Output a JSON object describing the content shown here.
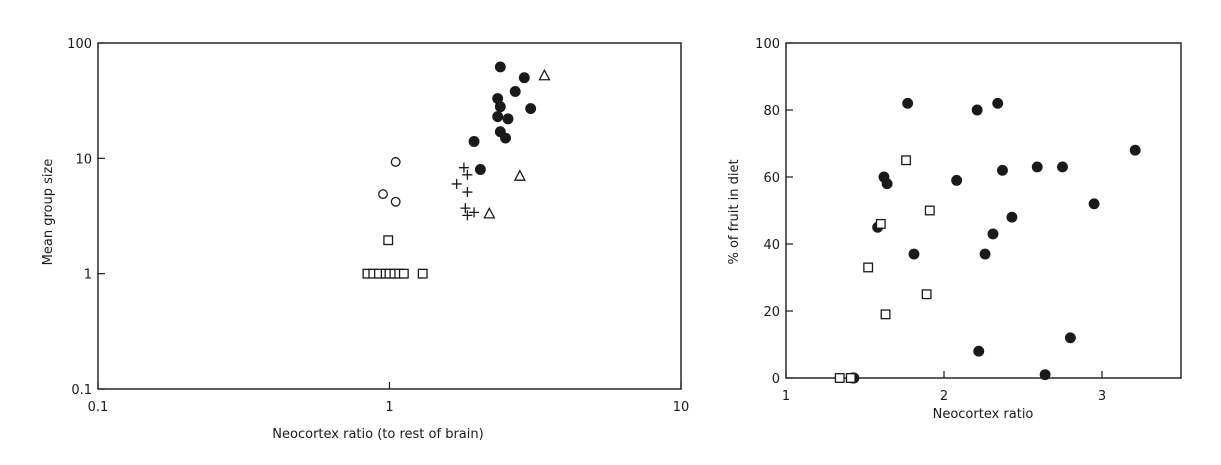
{
  "chart_data": [
    {
      "type": "scatter",
      "xlabel": "Neocortex ratio (to rest of brain)",
      "ylabel": "Mean group size",
      "xscale": "log",
      "yscale": "log",
      "xlim": [
        0.1,
        10
      ],
      "ylim": [
        0.1,
        100
      ],
      "xticks": [
        0.1,
        1,
        10
      ],
      "xtick_labels": [
        "0.1",
        "1",
        "10"
      ],
      "yticks": [
        0.1,
        1,
        10,
        100
      ],
      "ytick_labels": [
        "0.1",
        "1",
        "10",
        "100"
      ],
      "grid": false,
      "legend": "none",
      "series": [
        {
          "marker": "filled-circle",
          "points": [
            [
              2.4,
              62
            ],
            [
              2.9,
              50
            ],
            [
              2.7,
              38
            ],
            [
              2.35,
              33
            ],
            [
              2.4,
              28
            ],
            [
              3.05,
              27
            ],
            [
              2.35,
              23
            ],
            [
              2.55,
              22
            ],
            [
              2.4,
              17
            ],
            [
              2.5,
              15
            ],
            [
              1.95,
              14
            ],
            [
              2.05,
              8
            ]
          ]
        },
        {
          "marker": "open-triangle",
          "points": [
            [
              3.4,
              52
            ],
            [
              2.8,
              7
            ],
            [
              2.2,
              3.3
            ]
          ]
        },
        {
          "marker": "plus",
          "points": [
            [
              1.8,
              8.3
            ],
            [
              1.85,
              7.2
            ],
            [
              1.7,
              6
            ],
            [
              1.85,
              5.1
            ],
            [
              1.82,
              3.7
            ],
            [
              1.95,
              3.4
            ],
            [
              1.85,
              3.2
            ]
          ]
        },
        {
          "marker": "open-circle",
          "points": [
            [
              1.05,
              9.3
            ],
            [
              0.95,
              4.9
            ],
            [
              1.05,
              4.2
            ]
          ]
        },
        {
          "marker": "open-square",
          "points": [
            [
              0.99,
              1.95
            ],
            [
              0.84,
              1
            ],
            [
              0.88,
              1
            ],
            [
              0.92,
              1
            ],
            [
              0.97,
              1
            ],
            [
              1.0,
              1
            ],
            [
              1.04,
              1
            ],
            [
              1.08,
              1
            ],
            [
              1.12,
              1
            ],
            [
              1.3,
              1
            ]
          ]
        }
      ]
    },
    {
      "type": "scatter",
      "xlabel": "Neocortex ratio",
      "ylabel": "% of fruit in diet",
      "xlim": [
        1,
        3.5
      ],
      "ylim": [
        0,
        100
      ],
      "xticks": [
        1,
        2,
        3
      ],
      "xtick_labels": [
        "1",
        "2",
        "3"
      ],
      "yticks": [
        0,
        20,
        40,
        60,
        80,
        100
      ],
      "ytick_labels": [
        "0",
        "20",
        "40",
        "60",
        "80",
        "100"
      ],
      "grid": false,
      "legend": "none",
      "series": [
        {
          "marker": "filled-circle",
          "points": [
            [
              1.77,
              82
            ],
            [
              2.21,
              80
            ],
            [
              2.34,
              82
            ],
            [
              3.21,
              68
            ],
            [
              2.59,
              63
            ],
            [
              2.75,
              63
            ],
            [
              2.37,
              62
            ],
            [
              1.62,
              60
            ],
            [
              1.64,
              58
            ],
            [
              2.08,
              59
            ],
            [
              2.95,
              52
            ],
            [
              2.43,
              48
            ],
            [
              1.58,
              45
            ],
            [
              2.31,
              43
            ],
            [
              1.81,
              37
            ],
            [
              2.26,
              37
            ],
            [
              2.8,
              12
            ],
            [
              2.22,
              8
            ],
            [
              2.64,
              1
            ],
            [
              1.42,
              0
            ],
            [
              1.43,
              0
            ]
          ]
        },
        {
          "marker": "open-square",
          "points": [
            [
              1.76,
              65
            ],
            [
              1.91,
              50
            ],
            [
              1.6,
              46
            ],
            [
              1.52,
              33
            ],
            [
              1.89,
              25
            ],
            [
              1.63,
              19
            ],
            [
              1.34,
              0
            ],
            [
              1.41,
              0
            ]
          ]
        }
      ]
    }
  ]
}
